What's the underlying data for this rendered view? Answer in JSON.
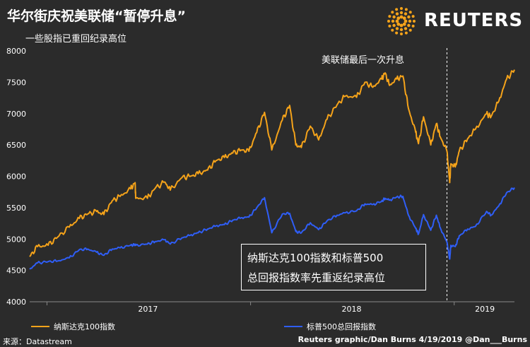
{
  "header": {
    "title": "华尔街庆祝美联储“暂停升息”",
    "subtitle": "一些股指已重回纪录高位",
    "logo_text": "REUTERS"
  },
  "colors": {
    "background": "#2b2b2b",
    "nasdaq": "#f5a31a",
    "sp500": "#2f5ef7",
    "text": "#ffffff"
  },
  "annotation": "美联储最后一次升息",
  "callout": {
    "line1": "纳斯达克100指数和标普500",
    "line2": "总回报指数率先重返纪录高位"
  },
  "footer": {
    "source": "来源：Datastream",
    "credit": "Reuters graphic/Dan Burns 4/19/2019 @Dan___Burns"
  },
  "chart_data": {
    "type": "line",
    "xlabel": "",
    "ylabel": "",
    "x_ticks": [
      "2017",
      "2018",
      "2019"
    ],
    "y_ticks": [
      4000,
      4500,
      5000,
      5500,
      6000,
      6500,
      7000,
      7500,
      8000
    ],
    "ylim": [
      4000,
      8000
    ],
    "xlim": [
      "2016-12-01",
      "2019-04-19"
    ],
    "grid": false,
    "legend_position": "bottom",
    "annotations": [
      {
        "text": "美联储最后一次升息",
        "x": "2018-12-19"
      }
    ],
    "series": [
      {
        "name": "纳斯达克100指数",
        "color": "#f5a31a",
        "points": [
          [
            "2016-12-01",
            4720
          ],
          [
            "2016-12-15",
            4880
          ],
          [
            "2017-01-03",
            4900
          ],
          [
            "2017-01-20",
            5030
          ],
          [
            "2017-02-10",
            5190
          ],
          [
            "2017-02-28",
            5330
          ],
          [
            "2017-03-15",
            5400
          ],
          [
            "2017-03-31",
            5440
          ],
          [
            "2017-04-13",
            5390
          ],
          [
            "2017-04-28",
            5610
          ],
          [
            "2017-05-12",
            5680
          ],
          [
            "2017-05-31",
            5800
          ],
          [
            "2017-06-08",
            5900
          ],
          [
            "2017-06-09",
            5650
          ],
          [
            "2017-06-30",
            5650
          ],
          [
            "2017-07-14",
            5810
          ],
          [
            "2017-07-31",
            5910
          ],
          [
            "2017-08-10",
            5780
          ],
          [
            "2017-08-31",
            5980
          ],
          [
            "2017-09-15",
            6000
          ],
          [
            "2017-09-29",
            6040
          ],
          [
            "2017-10-16",
            6100
          ],
          [
            "2017-10-31",
            6250
          ],
          [
            "2017-11-15",
            6300
          ],
          [
            "2017-11-30",
            6370
          ],
          [
            "2017-12-15",
            6420
          ],
          [
            "2017-12-29",
            6400
          ],
          [
            "2018-01-12",
            6700
          ],
          [
            "2018-01-26",
            7020
          ],
          [
            "2018-02-08",
            6420
          ],
          [
            "2018-02-27",
            6900
          ],
          [
            "2018-03-12",
            7130
          ],
          [
            "2018-03-23",
            6500
          ],
          [
            "2018-04-02",
            6460
          ],
          [
            "2018-04-18",
            6800
          ],
          [
            "2018-05-03",
            6580
          ],
          [
            "2018-05-18",
            6910
          ],
          [
            "2018-06-05",
            7140
          ],
          [
            "2018-06-20",
            7280
          ],
          [
            "2018-07-10",
            7260
          ],
          [
            "2018-07-25",
            7500
          ],
          [
            "2018-08-08",
            7420
          ],
          [
            "2018-08-24",
            7550
          ],
          [
            "2018-08-30",
            7650
          ],
          [
            "2018-09-07",
            7450
          ],
          [
            "2018-09-20",
            7550
          ],
          [
            "2018-10-01",
            7600
          ],
          [
            "2018-10-11",
            7080
          ],
          [
            "2018-10-24",
            6700
          ],
          [
            "2018-10-29",
            6520
          ],
          [
            "2018-11-07",
            6950
          ],
          [
            "2018-11-20",
            6500
          ],
          [
            "2018-11-30",
            6840
          ],
          [
            "2018-12-07",
            6630
          ],
          [
            "2018-12-19",
            6400
          ],
          [
            "2018-12-24",
            5900
          ],
          [
            "2018-12-26",
            6200
          ],
          [
            "2019-01-03",
            6150
          ],
          [
            "2019-01-10",
            6400
          ],
          [
            "2019-01-25",
            6600
          ],
          [
            "2019-02-08",
            6750
          ],
          [
            "2019-02-28",
            7000
          ],
          [
            "2019-03-08",
            6950
          ],
          [
            "2019-03-22",
            7200
          ],
          [
            "2019-04-05",
            7550
          ],
          [
            "2019-04-19",
            7700
          ]
        ]
      },
      {
        "name": "标普500总回报指数",
        "color": "#2f5ef7",
        "points": [
          [
            "2016-12-01",
            4520
          ],
          [
            "2016-12-15",
            4620
          ],
          [
            "2017-01-03",
            4640
          ],
          [
            "2017-01-20",
            4650
          ],
          [
            "2017-02-10",
            4700
          ],
          [
            "2017-02-28",
            4830
          ],
          [
            "2017-03-15",
            4840
          ],
          [
            "2017-03-31",
            4790
          ],
          [
            "2017-04-13",
            4740
          ],
          [
            "2017-04-28",
            4840
          ],
          [
            "2017-05-12",
            4860
          ],
          [
            "2017-05-31",
            4900
          ],
          [
            "2017-06-08",
            4910
          ],
          [
            "2017-06-09",
            4900
          ],
          [
            "2017-06-30",
            4920
          ],
          [
            "2017-07-14",
            4960
          ],
          [
            "2017-07-31",
            4990
          ],
          [
            "2017-08-10",
            4920
          ],
          [
            "2017-08-31",
            5020
          ],
          [
            "2017-09-15",
            5060
          ],
          [
            "2017-09-29",
            5100
          ],
          [
            "2017-10-16",
            5160
          ],
          [
            "2017-10-31",
            5210
          ],
          [
            "2017-11-15",
            5230
          ],
          [
            "2017-11-30",
            5300
          ],
          [
            "2017-12-15",
            5340
          ],
          [
            "2017-12-29",
            5350
          ],
          [
            "2018-01-12",
            5500
          ],
          [
            "2018-01-26",
            5660
          ],
          [
            "2018-02-08",
            5100
          ],
          [
            "2018-02-27",
            5400
          ],
          [
            "2018-03-12",
            5410
          ],
          [
            "2018-03-23",
            5120
          ],
          [
            "2018-04-02",
            5100
          ],
          [
            "2018-04-18",
            5260
          ],
          [
            "2018-05-03",
            5150
          ],
          [
            "2018-05-18",
            5290
          ],
          [
            "2018-06-05",
            5380
          ],
          [
            "2018-06-20",
            5420
          ],
          [
            "2018-07-10",
            5450
          ],
          [
            "2018-07-25",
            5560
          ],
          [
            "2018-08-08",
            5550
          ],
          [
            "2018-08-24",
            5600
          ],
          [
            "2018-08-30",
            5650
          ],
          [
            "2018-09-07",
            5620
          ],
          [
            "2018-09-20",
            5670
          ],
          [
            "2018-10-01",
            5680
          ],
          [
            "2018-10-11",
            5380
          ],
          [
            "2018-10-24",
            5170
          ],
          [
            "2018-10-29",
            5080
          ],
          [
            "2018-11-07",
            5390
          ],
          [
            "2018-11-20",
            5140
          ],
          [
            "2018-11-30",
            5380
          ],
          [
            "2018-12-07",
            5180
          ],
          [
            "2018-12-19",
            4950
          ],
          [
            "2018-12-24",
            4680
          ],
          [
            "2018-12-26",
            4900
          ],
          [
            "2019-01-03",
            4880
          ],
          [
            "2019-01-10",
            5050
          ],
          [
            "2019-01-25",
            5160
          ],
          [
            "2019-02-08",
            5200
          ],
          [
            "2019-02-28",
            5440
          ],
          [
            "2019-03-08",
            5380
          ],
          [
            "2019-03-22",
            5530
          ],
          [
            "2019-04-05",
            5740
          ],
          [
            "2019-04-19",
            5820
          ]
        ]
      }
    ]
  }
}
